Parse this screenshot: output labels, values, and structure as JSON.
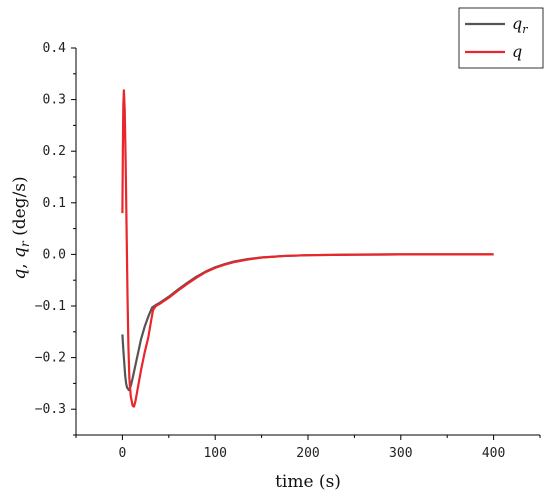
{
  "chart_data": {
    "type": "line",
    "xlabel": "time (s)",
    "ylabel": "q, q_r (deg/s)",
    "xlim": [
      -50,
      450
    ],
    "ylim": [
      -0.35,
      0.4
    ],
    "x_ticks": [
      0,
      100,
      200,
      300,
      400
    ],
    "y_ticks": [
      -0.3,
      -0.2,
      -0.1,
      0.0,
      0.1,
      0.2,
      0.3,
      0.4
    ],
    "y_tick_labels": [
      "−0.3",
      "−0.2",
      "−0.1",
      "0.0",
      "0.1",
      "0.2",
      "0.3",
      "0.4"
    ],
    "legend_position": "top-right",
    "grid": false,
    "series": [
      {
        "name": "q_r",
        "legend_main": "q",
        "legend_sub": "r",
        "color": "#555555",
        "points": [
          [
            0,
            -0.155
          ],
          [
            1,
            -0.185
          ],
          [
            2,
            -0.21
          ],
          [
            3,
            -0.235
          ],
          [
            4,
            -0.25
          ],
          [
            5,
            -0.258
          ],
          [
            7,
            -0.263
          ],
          [
            9,
            -0.255
          ],
          [
            11,
            -0.24
          ],
          [
            14,
            -0.215
          ],
          [
            17,
            -0.19
          ],
          [
            20,
            -0.165
          ],
          [
            24,
            -0.14
          ],
          [
            28,
            -0.12
          ],
          [
            32,
            -0.103
          ],
          [
            36,
            -0.098
          ],
          [
            40,
            -0.094
          ],
          [
            50,
            -0.082
          ],
          [
            60,
            -0.068
          ],
          [
            70,
            -0.055
          ],
          [
            80,
            -0.043
          ],
          [
            90,
            -0.033
          ],
          [
            100,
            -0.025
          ],
          [
            110,
            -0.019
          ],
          [
            120,
            -0.014
          ],
          [
            135,
            -0.009
          ],
          [
            150,
            -0.006
          ],
          [
            175,
            -0.003
          ],
          [
            200,
            -0.0015
          ],
          [
            250,
            -0.0005
          ],
          [
            300,
            0
          ],
          [
            350,
            0
          ],
          [
            400,
            0
          ]
        ]
      },
      {
        "name": "q",
        "legend_main": "q",
        "legend_sub": "",
        "color": "#e8262b",
        "points": [
          [
            0,
            0.08
          ],
          [
            0.5,
            0.2
          ],
          [
            1,
            0.29
          ],
          [
            1.6,
            0.318
          ],
          [
            2.5,
            0.28
          ],
          [
            3.5,
            0.18
          ],
          [
            4.5,
            0.05
          ],
          [
            5.5,
            -0.08
          ],
          [
            6.5,
            -0.18
          ],
          [
            7.5,
            -0.24
          ],
          [
            9,
            -0.275
          ],
          [
            11,
            -0.293
          ],
          [
            12.5,
            -0.295
          ],
          [
            14,
            -0.285
          ],
          [
            17,
            -0.255
          ],
          [
            20,
            -0.225
          ],
          [
            24,
            -0.19
          ],
          [
            28,
            -0.16
          ],
          [
            31,
            -0.128
          ],
          [
            33,
            -0.108
          ],
          [
            36,
            -0.1
          ],
          [
            40,
            -0.096
          ],
          [
            50,
            -0.084
          ],
          [
            60,
            -0.07
          ],
          [
            70,
            -0.057
          ],
          [
            80,
            -0.045
          ],
          [
            90,
            -0.034
          ],
          [
            100,
            -0.026
          ],
          [
            110,
            -0.02
          ],
          [
            120,
            -0.015
          ],
          [
            135,
            -0.01
          ],
          [
            150,
            -0.006
          ],
          [
            175,
            -0.003
          ],
          [
            200,
            -0.0015
          ],
          [
            250,
            -0.0005
          ],
          [
            300,
            0
          ],
          [
            350,
            0
          ],
          [
            400,
            0
          ]
        ]
      }
    ]
  }
}
